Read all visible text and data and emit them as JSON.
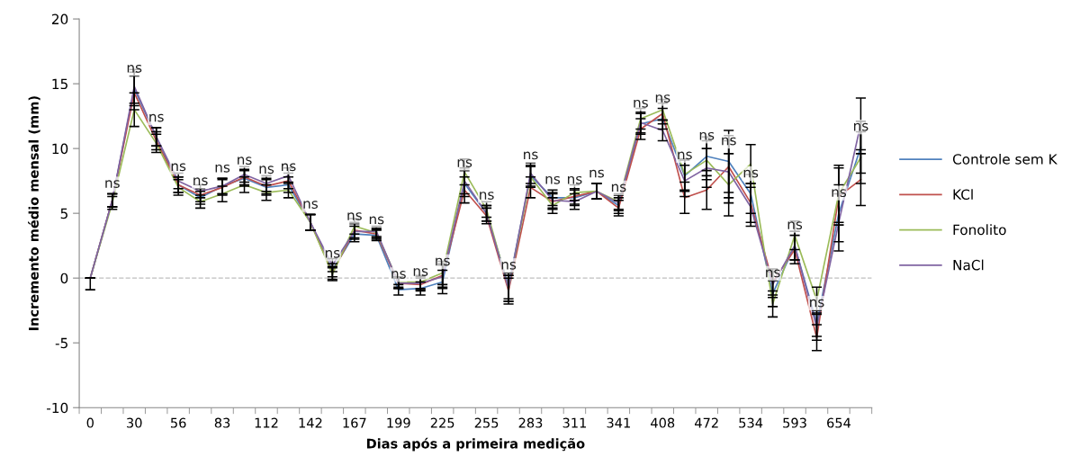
{
  "chart_data": {
    "type": "line",
    "xlabel": "Dias após a primeira medição",
    "ylabel": "Incremento médio mensal (mm)",
    "categories": [
      "0",
      null,
      "30",
      null,
      "56",
      null,
      "83",
      null,
      "112",
      null,
      "142",
      null,
      "167",
      null,
      "199",
      null,
      "225",
      null,
      "255",
      null,
      "283",
      null,
      "311",
      null,
      "341",
      null,
      "408",
      null,
      "472",
      null,
      "534",
      null,
      "593",
      null,
      "654",
      null
    ],
    "series": [
      {
        "name": "Controle sem K",
        "color": "#4f81bd",
        "values": [
          0,
          6.0,
          14.6,
          10.9,
          7.2,
          6.2,
          7.1,
          7.7,
          7.0,
          7.2,
          4.3,
          0.6,
          3.4,
          3.3,
          -0.9,
          -0.8,
          -0.3,
          7.3,
          5.0,
          -0.6,
          7.9,
          6.2,
          6.2,
          6.7,
          5.6,
          11.9,
          12.3,
          7.9,
          9.4,
          9.0,
          6.5,
          -1.2,
          2.5,
          -3.5,
          5.0,
          10.1
        ],
        "errors": [
          [
            -0.9,
            0
          ],
          0.5,
          1.3,
          0.7,
          0.6,
          0.5,
          0.6,
          0.6,
          0.6,
          0.6,
          0.6,
          0.5,
          0.6,
          0.4,
          0.4,
          0.5,
          0.9,
          1.0,
          0.6,
          1.0,
          0.8,
          0.6,
          0.6,
          0.6,
          0.6,
          0.8,
          0.8,
          1.2,
          1.5,
          2.4,
          1.5,
          1.0,
          1.1,
          1.0,
          2.2,
          2.0
        ],
        "value_labels": [
          null,
          "ns",
          "ns",
          "ns",
          "ns",
          "ns",
          "ns",
          "ns",
          "ns",
          "ns",
          "ns",
          "ns",
          "ns",
          "ns",
          "ns",
          "ns",
          "ns",
          "ns",
          "ns",
          "ns",
          "ns",
          "ns",
          "ns",
          "ns",
          "ns",
          "ns",
          "ns",
          "ns",
          "ns",
          "ns",
          "ns",
          "ns",
          "ns",
          "ns",
          "ns",
          "ns"
        ]
      },
      {
        "name": "KCl",
        "color": "#c0504d",
        "values": [
          0,
          6.0,
          14.3,
          10.6,
          7.2,
          6.4,
          7.0,
          7.8,
          7.1,
          7.5,
          4.3,
          0.4,
          3.7,
          3.4,
          -0.4,
          -0.5,
          0.2,
          6.8,
          4.8,
          -1.0,
          7.0,
          5.9,
          6.3,
          6.7,
          5.4,
          11.5,
          12.7,
          6.2,
          6.8,
          8.6,
          5.8,
          -0.3,
          2.2,
          -4.6,
          6.3,
          7.6
        ],
        "errors": [
          null,
          0.5,
          1.3,
          0.7,
          0.6,
          0.5,
          0.6,
          0.6,
          0.6,
          0.6,
          0.6,
          0.5,
          0.6,
          0.4,
          0.4,
          0.5,
          0.9,
          1.0,
          0.6,
          1.0,
          0.8,
          0.6,
          0.6,
          0.6,
          0.6,
          0.8,
          0.8,
          1.2,
          1.5,
          2.4,
          1.5,
          1.0,
          1.1,
          1.0,
          2.2,
          2.0
        ]
      },
      {
        "name": "Fonolito",
        "color": "#9bbb59",
        "values": [
          0,
          5.8,
          13.0,
          10.4,
          7.0,
          5.9,
          6.5,
          7.2,
          6.6,
          6.8,
          4.3,
          0.3,
          4.0,
          3.5,
          -0.3,
          -0.3,
          0.4,
          8.2,
          5.3,
          -0.8,
          7.8,
          5.6,
          6.6,
          6.7,
          5.9,
          12.3,
          13.0,
          8.0,
          9.1,
          7.2,
          8.8,
          -2.0,
          3.3,
          -1.7,
          6.5,
          9.3
        ],
        "errors": [
          null,
          0.5,
          1.3,
          0.7,
          0.6,
          0.5,
          0.6,
          0.6,
          0.6,
          0.6,
          0.6,
          0.5,
          0.6,
          0.4,
          0.4,
          0.5,
          0.9,
          1.0,
          0.6,
          1.0,
          0.8,
          0.6,
          0.6,
          0.6,
          0.6,
          0.8,
          0.8,
          1.2,
          1.5,
          2.4,
          1.5,
          1.0,
          1.1,
          1.0,
          2.2,
          2.0
        ]
      },
      {
        "name": "NaCl",
        "color": "#8064a2",
        "values": [
          0,
          6.0,
          14.8,
          10.9,
          7.5,
          6.7,
          7.1,
          8.0,
          7.3,
          7.9,
          4.3,
          1.0,
          3.6,
          3.6,
          -0.4,
          -0.4,
          0.1,
          7.5,
          5.0,
          -0.8,
          8.1,
          6.0,
          5.9,
          6.7,
          5.8,
          12.0,
          11.4,
          7.5,
          8.5,
          8.2,
          5.5,
          -0.5,
          2.5,
          -3.8,
          4.3,
          11.9
        ],
        "errors": [
          null,
          0.5,
          1.3,
          0.7,
          0.6,
          0.5,
          0.6,
          0.6,
          0.6,
          0.6,
          0.6,
          0.5,
          0.6,
          0.4,
          0.4,
          0.5,
          0.9,
          1.0,
          0.6,
          1.0,
          0.8,
          0.6,
          0.6,
          0.6,
          0.6,
          0.8,
          0.8,
          1.2,
          1.5,
          2.4,
          1.5,
          1.0,
          1.1,
          1.0,
          2.2,
          2.0
        ]
      }
    ],
    "ylim": [
      -10,
      20
    ],
    "yticks": [
      -10,
      -5,
      0,
      5,
      10,
      15,
      20
    ],
    "ref_lines": [
      {
        "axis": "y",
        "value": 0,
        "color": "#bfbfbf",
        "line_style": "dashed"
      }
    ],
    "legend": "right",
    "grid": false,
    "marker": "none",
    "line_style": "solid"
  }
}
